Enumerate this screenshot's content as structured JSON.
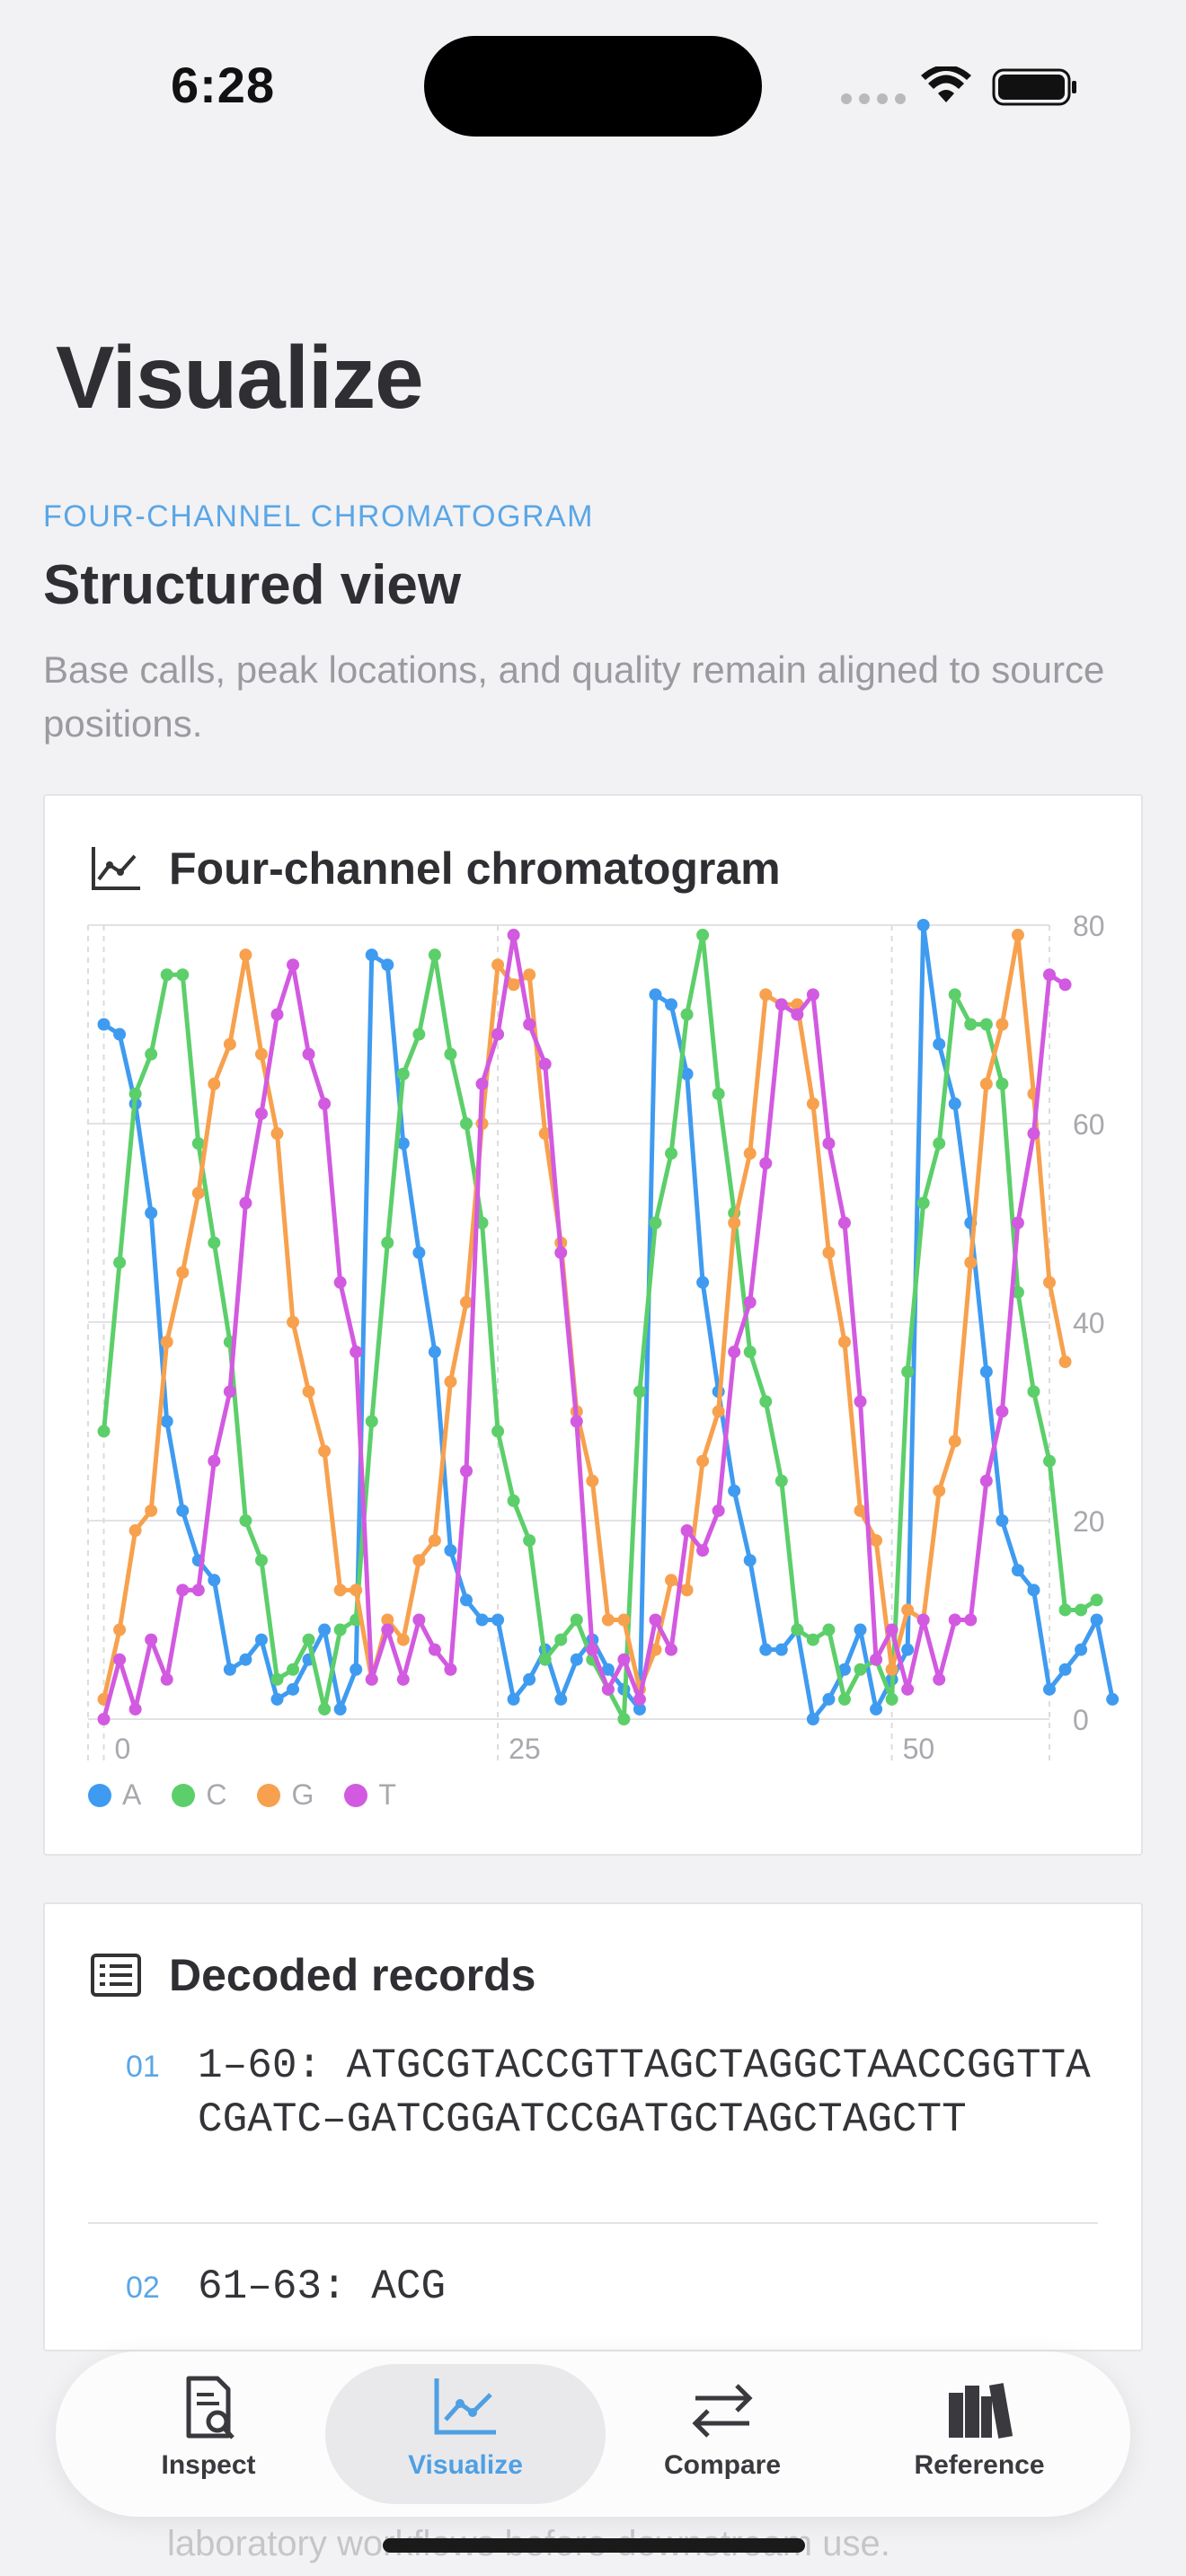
{
  "status_bar": {
    "time": "6:28"
  },
  "page": {
    "title": "Visualize"
  },
  "section": {
    "eyebrow": "FOUR-CHANNEL CHROMATOGRAM",
    "title": "Structured view",
    "description": "Base calls, peak locations, and quality remain aligned to source positions."
  },
  "chart_card": {
    "title": "Four-channel chromatogram"
  },
  "chart_data": {
    "type": "line",
    "title": "Four-channel chromatogram",
    "xlabel": "",
    "ylabel": "",
    "xlim": [
      -1,
      60
    ],
    "ylim": [
      0,
      80
    ],
    "x_ticks": [
      "0",
      "25",
      "50"
    ],
    "y_ticks": [
      "80",
      "60",
      "40",
      "20",
      "0"
    ],
    "grid": true,
    "legend_position": "bottom-left",
    "series": [
      {
        "name": "A",
        "color": "#3f9bf0",
        "values": [
          70,
          69,
          62,
          51,
          30,
          21,
          16,
          14,
          5,
          6,
          8,
          2,
          3,
          6,
          9,
          1,
          5,
          77,
          76,
          58,
          47,
          37,
          17,
          12,
          10,
          10,
          2,
          4,
          7,
          2,
          6,
          8,
          5,
          3,
          1,
          73,
          72,
          65,
          44,
          33,
          23,
          16,
          7,
          7,
          9,
          0,
          2,
          5,
          9,
          1,
          4,
          7,
          80,
          68,
          62,
          50,
          35,
          20,
          15,
          13,
          3,
          5,
          7,
          10,
          2
        ]
      },
      {
        "name": "C",
        "color": "#5ccf6a",
        "values": [
          29,
          46,
          63,
          67,
          75,
          75,
          58,
          48,
          38,
          20,
          16,
          4,
          5,
          8,
          1,
          9,
          10,
          30,
          48,
          65,
          69,
          77,
          67,
          60,
          50,
          29,
          22,
          18,
          6,
          8,
          10,
          6,
          3,
          0,
          33,
          50,
          57,
          71,
          79,
          63,
          51,
          37,
          32,
          24,
          9,
          8,
          9,
          2,
          5,
          6,
          2,
          35,
          52,
          58,
          73,
          70,
          70,
          64,
          43,
          33,
          26,
          11,
          11,
          12
        ]
      },
      {
        "name": "G",
        "color": "#f7a14e",
        "values": [
          2,
          9,
          19,
          21,
          38,
          45,
          53,
          64,
          68,
          77,
          67,
          59,
          40,
          33,
          27,
          13,
          13,
          4,
          10,
          8,
          16,
          18,
          34,
          42,
          60,
          76,
          74,
          75,
          59,
          48,
          31,
          24,
          10,
          10,
          3,
          7,
          14,
          13,
          26,
          31,
          50,
          57,
          73,
          72,
          72,
          62,
          47,
          38,
          21,
          18,
          5,
          11,
          10,
          23,
          28,
          46,
          64,
          70,
          79,
          63,
          44,
          36
        ]
      },
      {
        "name": "T",
        "color": "#d25ae0",
        "values": [
          0,
          6,
          1,
          8,
          4,
          13,
          13,
          26,
          33,
          52,
          61,
          71,
          76,
          67,
          62,
          44,
          37,
          4,
          9,
          4,
          10,
          7,
          5,
          25,
          64,
          69,
          79,
          70,
          66,
          47,
          30,
          7,
          3,
          6,
          2,
          10,
          7,
          19,
          17,
          21,
          37,
          42,
          56,
          72,
          71,
          73,
          58,
          50,
          32,
          6,
          9,
          3,
          10,
          4,
          10,
          10,
          24,
          31,
          50,
          59,
          75,
          74
        ]
      }
    ]
  },
  "records_card": {
    "title": "Decoded records",
    "records": [
      {
        "num": "01",
        "text": "1–60: ATGCGTACCGTTAGCTAGGCTAACCGGTTACGATC–GATCGGATCCGATGCTAGCTAGCTT"
      },
      {
        "num": "02",
        "text": "61–63: ACG"
      }
    ]
  },
  "behind_text": "laboratory workflows before downstream use.",
  "tab_bar": {
    "tabs": [
      {
        "label": "Inspect",
        "icon": "doc-magnifier-icon"
      },
      {
        "label": "Visualize",
        "icon": "chart-line-icon",
        "active": true
      },
      {
        "label": "Compare",
        "icon": "arrows-left-right-icon"
      },
      {
        "label": "Reference",
        "icon": "books-icon"
      }
    ]
  }
}
